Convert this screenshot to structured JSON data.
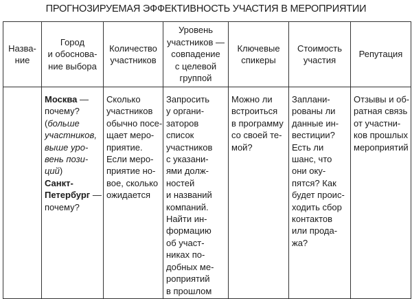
{
  "title": "ПРОГНОЗИРУЕМАЯ ЭФФЕКТИВНОСТЬ УЧАСТИЯ В МЕРОПРИЯТИИ",
  "headers": [
    [
      "Назва-",
      "ние"
    ],
    [
      "Город",
      "и обоснова-",
      "ние выбора"
    ],
    [
      "Количество",
      "участников"
    ],
    [
      "Уровень",
      "участников —",
      "совпадение",
      "с целевой",
      "группой"
    ],
    [
      "Ключевые",
      "спикеры"
    ],
    [
      "Стоимость",
      "участия"
    ],
    [
      "Репутация"
    ]
  ],
  "cells": [
    [],
    [
      [
        {
          "t": "Москва",
          "s": "b"
        },
        {
          "t": " —"
        }
      ],
      [
        {
          "t": "почему?"
        }
      ],
      [
        {
          "t": "(",
          "s": ""
        },
        {
          "t": "больше",
          "s": "i"
        }
      ],
      [
        {
          "t": "участников,",
          "s": "i"
        }
      ],
      [
        {
          "t": "выше уро-",
          "s": "i"
        }
      ],
      [
        {
          "t": "вень пози-",
          "s": "i"
        }
      ],
      [
        {
          "t": "ций",
          "s": "i"
        },
        {
          "t": ")"
        }
      ],
      [
        {
          "t": "Санкт-",
          "s": "b"
        }
      ],
      [
        {
          "t": "Петербург",
          "s": "b"
        },
        {
          "t": " —"
        }
      ],
      [
        {
          "t": "почему?"
        }
      ]
    ],
    [
      [
        {
          "t": "Сколько"
        }
      ],
      [
        {
          "t": "участников"
        }
      ],
      [
        {
          "t": "обычно посе-"
        }
      ],
      [
        {
          "t": "щает меро-"
        }
      ],
      [
        {
          "t": "приятие."
        }
      ],
      [
        {
          "t": "Если меро-"
        }
      ],
      [
        {
          "t": "приятие но-"
        }
      ],
      [
        {
          "t": "вое, сколько"
        }
      ],
      [
        {
          "t": "ожидается"
        }
      ]
    ],
    [
      [
        {
          "t": "Запросить"
        }
      ],
      [
        {
          "t": "у органи-"
        }
      ],
      [
        {
          "t": "заторов"
        }
      ],
      [
        {
          "t": "список"
        }
      ],
      [
        {
          "t": "участников"
        }
      ],
      [
        {
          "t": "с указани-"
        }
      ],
      [
        {
          "t": "ями долж-"
        }
      ],
      [
        {
          "t": "ностей"
        }
      ],
      [
        {
          "t": "и названий"
        }
      ],
      [
        {
          "t": "компаний."
        }
      ],
      [
        {
          "t": "Найти ин-"
        }
      ],
      [
        {
          "t": "формацию"
        }
      ],
      [
        {
          "t": "об участ-"
        }
      ],
      [
        {
          "t": "никах по-"
        }
      ],
      [
        {
          "t": "добных ме-"
        }
      ],
      [
        {
          "t": "роприятий"
        }
      ],
      [
        {
          "t": "в прошлом"
        }
      ]
    ],
    [
      [
        {
          "t": "Можно ли"
        }
      ],
      [
        {
          "t": "встроиться"
        }
      ],
      [
        {
          "t": "в программу"
        }
      ],
      [
        {
          "t": "со своей те-"
        }
      ],
      [
        {
          "t": "мой?"
        }
      ]
    ],
    [
      [
        {
          "t": "Заплани-"
        }
      ],
      [
        {
          "t": "рованы ли"
        }
      ],
      [
        {
          "t": "данные ин-"
        }
      ],
      [
        {
          "t": "вестиции?"
        }
      ],
      [
        {
          "t": "Есть ли"
        }
      ],
      [
        {
          "t": "шанс, что"
        }
      ],
      [
        {
          "t": "они оку-"
        }
      ],
      [
        {
          "t": "пятся? Как"
        }
      ],
      [
        {
          "t": "будет проис-"
        }
      ],
      [
        {
          "t": "ходить сбор"
        }
      ],
      [
        {
          "t": "контактов"
        }
      ],
      [
        {
          "t": "или прода-"
        }
      ],
      [
        {
          "t": "жа?"
        }
      ]
    ],
    [
      [
        {
          "t": "Отзывы и об-"
        }
      ],
      [
        {
          "t": "ратная связь"
        }
      ],
      [
        {
          "t": "от участни-"
        }
      ],
      [
        {
          "t": "ков прошлых"
        }
      ],
      [
        {
          "t": "мероприятий"
        }
      ]
    ]
  ]
}
